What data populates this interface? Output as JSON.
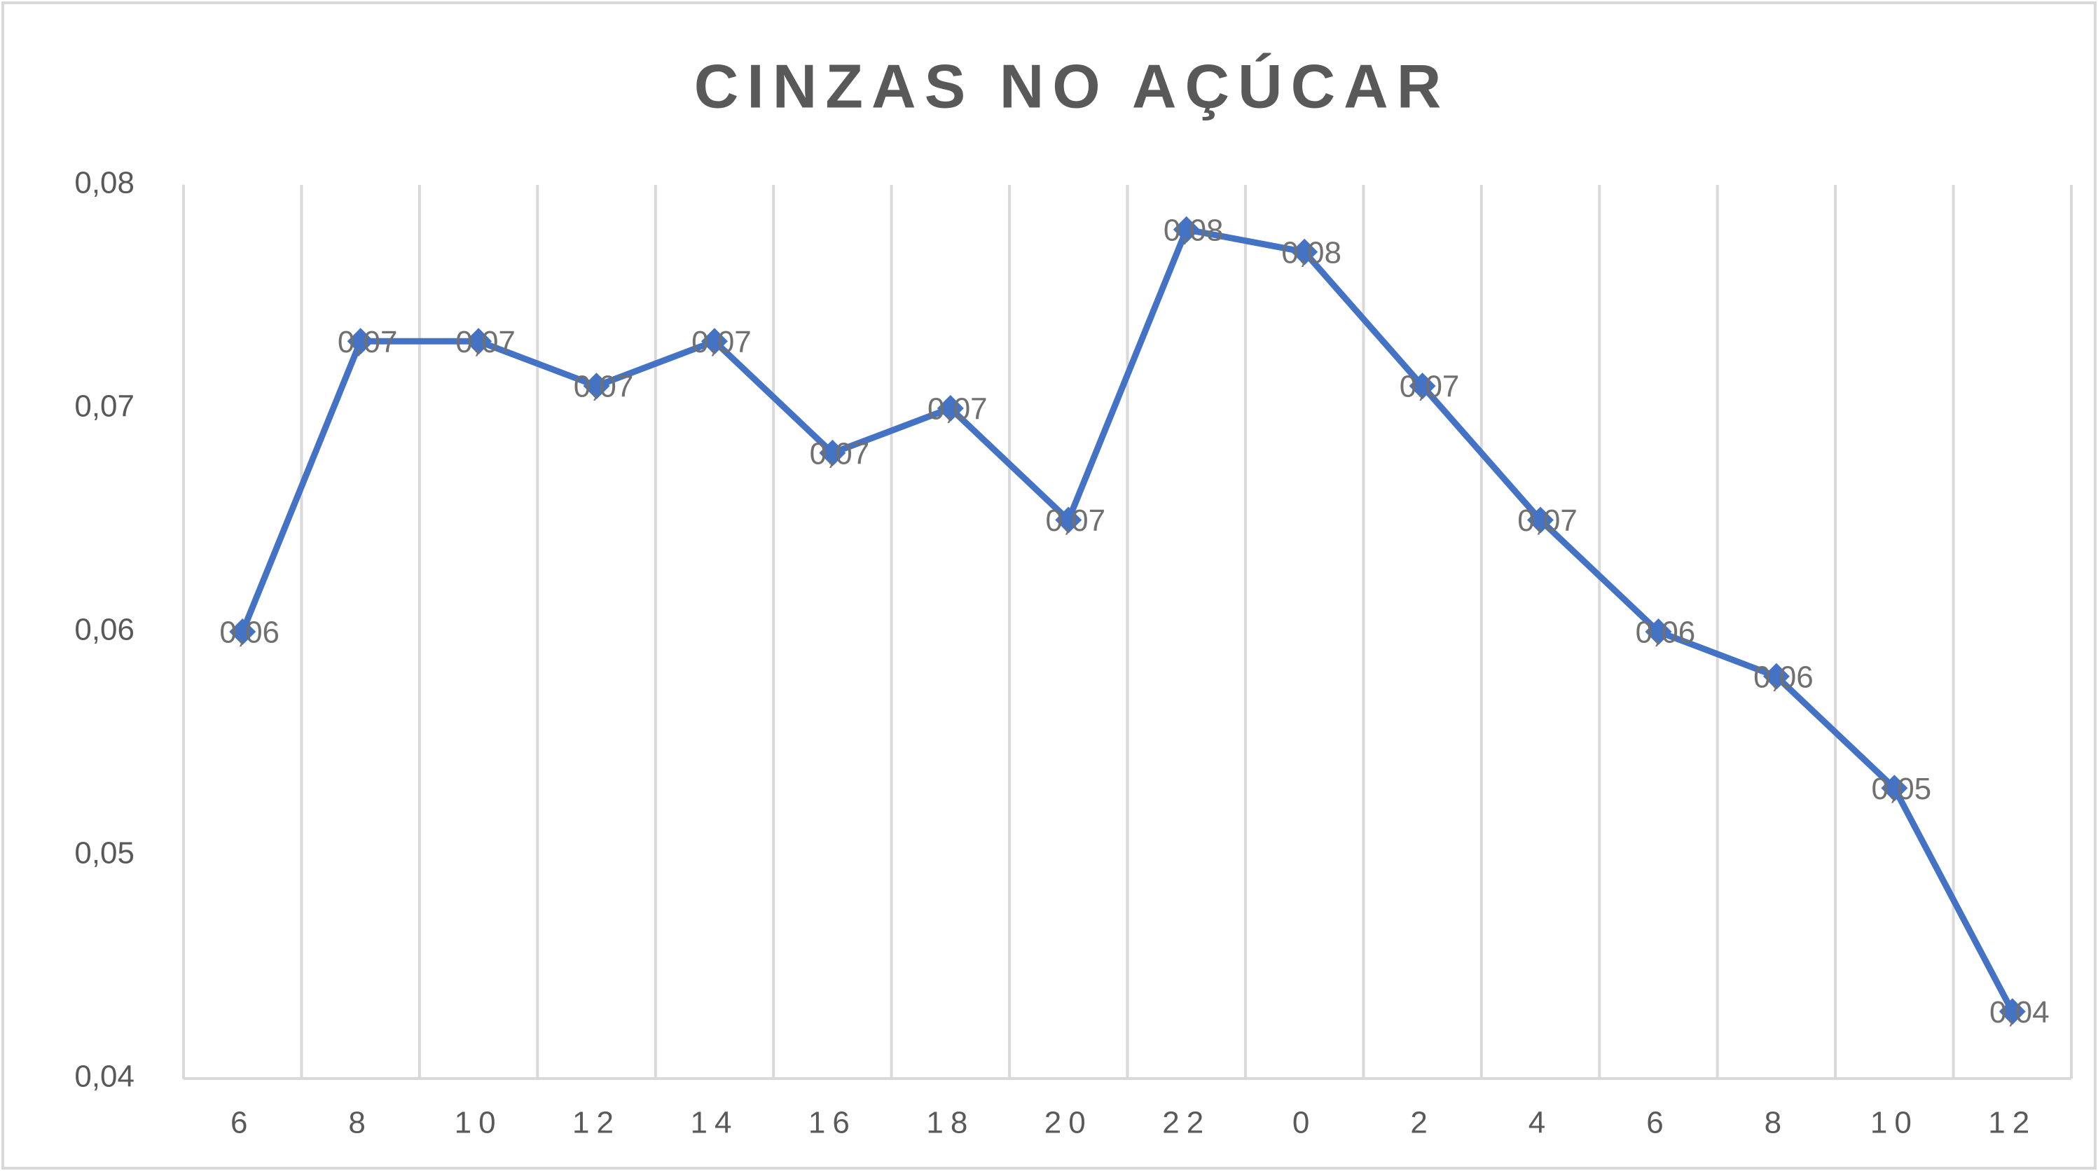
{
  "chart_data": {
    "type": "line",
    "title": "CINZAS NO AÇÚCAR",
    "categories": [
      "6",
      "8",
      "10",
      "12",
      "14",
      "16",
      "18",
      "20",
      "22",
      "0",
      "2",
      "4",
      "6",
      "8",
      "10",
      "12"
    ],
    "values": [
      0.06,
      0.073,
      0.073,
      0.071,
      0.073,
      0.068,
      0.07,
      0.065,
      0.078,
      0.077,
      0.071,
      0.065,
      0.06,
      0.058,
      0.053,
      0.043
    ],
    "value_labels": [
      "0,06",
      "0,07",
      "0,07",
      "0,07",
      "0,07",
      "0,07",
      "0,07",
      "0,07",
      "0,08",
      "0,08",
      "0,07",
      "0,07",
      "0,06",
      "0,06",
      "0,05",
      "0,04"
    ],
    "color": "#4472c4",
    "ylim": [
      0.04,
      0.08
    ],
    "yticks": [
      {
        "value": 0.04,
        "label": "0,04"
      },
      {
        "value": 0.05,
        "label": "0,05"
      },
      {
        "value": 0.06,
        "label": "0,06"
      },
      {
        "value": 0.07,
        "label": "0,07"
      },
      {
        "value": 0.08,
        "label": "0,08"
      }
    ],
    "grid": "x"
  }
}
